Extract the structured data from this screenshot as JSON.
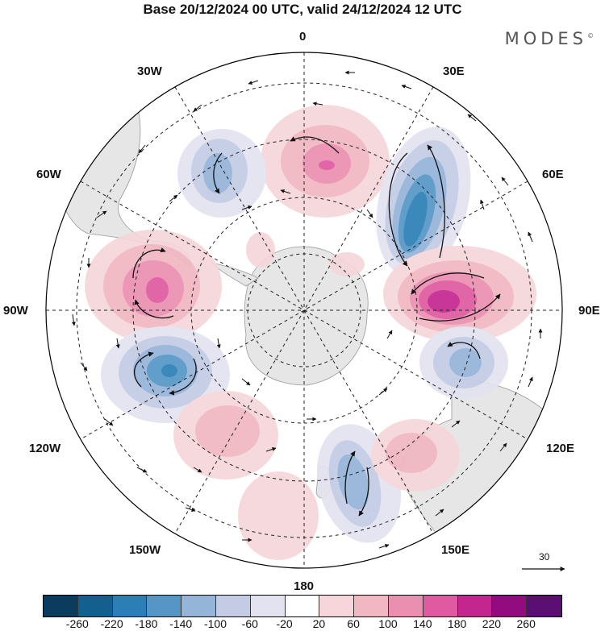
{
  "title": "Base 20/12/2024 00 UTC, valid 24/12/2024 12 UTC",
  "logo": "MODES",
  "logo_mark": "©",
  "lon_labels": {
    "top": "0",
    "bottom": "180",
    "left": "90W",
    "right": "90E",
    "nw30": "30W",
    "ne30": "30E",
    "nw60": "60W",
    "ne60": "60E",
    "sw120": "120W",
    "se120": "120E",
    "sw150": "150W",
    "se150": "150E"
  },
  "reference_vector": "30",
  "colorbar": {
    "tick_labels": [
      "-260",
      "-220",
      "-180",
      "-140",
      "-100",
      "-60",
      "-20",
      "20",
      "60",
      "100",
      "140",
      "180",
      "220",
      "260"
    ],
    "colors": [
      "#0b3c5d",
      "#13608f",
      "#2b7fb6",
      "#5596c6",
      "#94b4d8",
      "#c3cce4",
      "#e3e2f0",
      "#ffffff",
      "#f6d6da",
      "#f1b7c2",
      "#eb8fb0",
      "#df5aa0",
      "#c4268f",
      "#930c7f",
      "#5c0f72"
    ]
  }
}
